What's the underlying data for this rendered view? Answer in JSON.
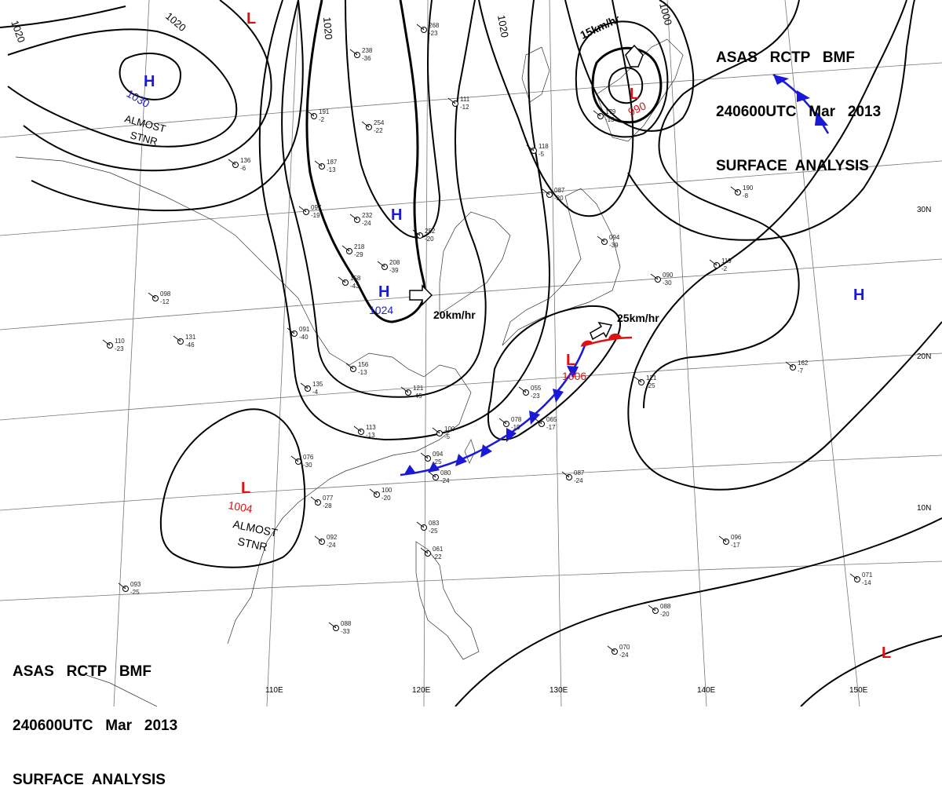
{
  "header": {
    "line1": "ASAS   RCTP   BMF",
    "line2": "240600UTC   Mar   2013",
    "line3": "SURFACE  ANALYSIS"
  },
  "longitudes": [
    "110E",
    "120E",
    "130E",
    "140E",
    "150E"
  ],
  "latitudes": [
    "30N",
    "20N",
    "10N"
  ],
  "isobar_labels": [
    "1020",
    "1020",
    "1020",
    "1020",
    "1000"
  ],
  "systems": [
    {
      "type": "H",
      "color": "#1a1ad6",
      "pressure": "1030",
      "note": [
        "ALMOST",
        "STNR"
      ]
    },
    {
      "type": "H",
      "color": "#1a1ad6",
      "pressure": "",
      "note": []
    },
    {
      "type": "H",
      "color": "#1a1ad6",
      "pressure": "1024",
      "note": []
    },
    {
      "type": "H",
      "color": "#1a1ad6",
      "pressure": "",
      "note": []
    },
    {
      "type": "L",
      "color": "#e01010",
      "pressure": "",
      "note": []
    },
    {
      "type": "L",
      "color": "#e01010",
      "pressure": "990",
      "note": []
    },
    {
      "type": "L",
      "color": "#e01010",
      "pressure": "1006",
      "note": []
    },
    {
      "type": "L",
      "color": "#e01010",
      "pressure": "1004",
      "note": [
        "ALMOST",
        "STNR"
      ]
    },
    {
      "type": "L",
      "color": "#e01010",
      "pressure": "",
      "note": []
    }
  ],
  "movements": [
    "15km/hr",
    "20km/hr",
    "25km/hr"
  ],
  "colors": {
    "high": "#1a1ad6",
    "low": "#e01010",
    "cold_front": "#1a1ad6",
    "warm_front": "#e01010",
    "isobar": "#000000"
  },
  "station_obs": [
    "268",
    "-23",
    "238",
    "-36",
    "191",
    "-2",
    "254",
    "-22",
    "111",
    "-12",
    "187",
    "-13",
    "136",
    "-6",
    "097",
    "-19",
    "232",
    "-24",
    "218",
    "-29",
    "252",
    "-20",
    "208",
    "-39",
    "158",
    "-43",
    "156",
    "-13",
    "135",
    "-4",
    "121",
    "-45",
    "113",
    "-13",
    "100",
    "-5",
    "094",
    "-25",
    "080",
    "-24",
    "077",
    "-28",
    "076",
    "-30",
    "092",
    "-24",
    "100",
    "-20",
    "083",
    "-25",
    "061",
    "-22",
    "055",
    "-23",
    "078",
    "-19",
    "065",
    "-17",
    "087",
    "-24",
    "096",
    "-17",
    "088",
    "-33",
    "088",
    "-20",
    "070",
    "-24",
    "071",
    "-14",
    "162",
    "-7",
    "121",
    "-25",
    "090",
    "-30",
    "119",
    "-2",
    "190",
    "-8",
    "094",
    "-39",
    "179",
    "-13",
    "118",
    "-5",
    "087",
    "-20",
    "091",
    "-40",
    "131",
    "-46",
    "110",
    "-23",
    "098",
    "-12",
    "093",
    "-25"
  ]
}
